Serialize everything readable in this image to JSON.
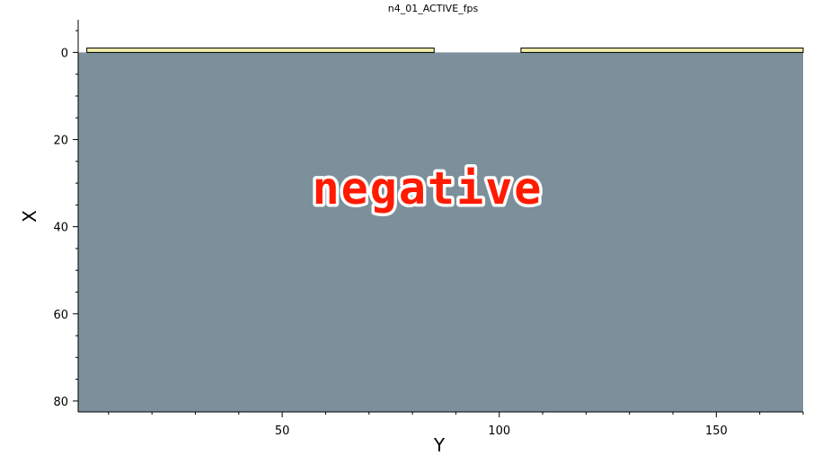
{
  "chart_data": {
    "type": "heatmap",
    "title": "n4_01_ACTIVE_fps",
    "xlabel": "Y",
    "ylabel": "X",
    "xlim": [
      3,
      170
    ],
    "ylim": [
      82.5,
      -7.5
    ],
    "x_ticks": [
      50,
      100,
      150
    ],
    "y_ticks": [
      0,
      20,
      40,
      60,
      80
    ],
    "overlay_text": "negative",
    "colors": {
      "field": "#7b909a",
      "strip": "#f2eda8",
      "outline": "#000000",
      "overlay_text": "#ff1a00",
      "overlay_outline": "#ffffff"
    },
    "regions": [
      {
        "x_start": 3,
        "x_end": 170,
        "y_start": 0,
        "y_end": 82.5,
        "color": "field"
      },
      {
        "x_start": 5,
        "x_end": 85,
        "y_start": -1,
        "y_end": 0,
        "color": "strip"
      },
      {
        "x_start": 105,
        "x_end": 170,
        "y_start": -1,
        "y_end": 0,
        "color": "strip"
      }
    ]
  }
}
